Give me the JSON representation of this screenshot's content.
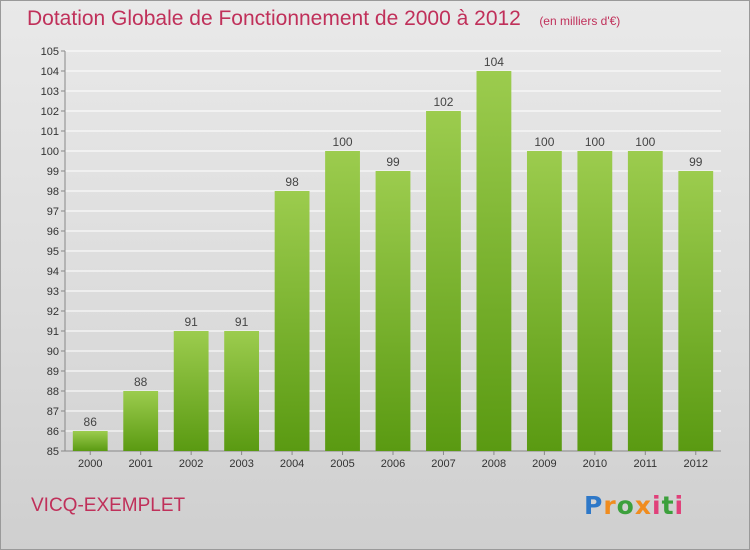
{
  "header": {
    "title": "Dotation Globale de Fonctionnement de 2000 à 2012",
    "unit": "(en milliers d'€)"
  },
  "footer": {
    "commune": "VICQ-EXEMPLET",
    "logo_text": "Proxiti"
  },
  "colors": {
    "bar_top": "#9ccc4e",
    "bar_bottom": "#5a9a12",
    "title": "#c0305a"
  },
  "chart_data": {
    "type": "bar",
    "title": "Dotation Globale de Fonctionnement de 2000 à 2012",
    "subtitle": "(en milliers d'€)",
    "xlabel": "",
    "ylabel": "",
    "categories": [
      "2000",
      "2001",
      "2002",
      "2003",
      "2004",
      "2005",
      "2006",
      "2007",
      "2008",
      "2009",
      "2010",
      "2011",
      "2012"
    ],
    "values": [
      86,
      88,
      91,
      91,
      98,
      100,
      99,
      102,
      104,
      100,
      100,
      100,
      99
    ],
    "ylim": [
      85,
      105
    ],
    "yticks": [
      85,
      86,
      87,
      88,
      89,
      90,
      91,
      92,
      93,
      94,
      95,
      96,
      97,
      98,
      99,
      100,
      101,
      102,
      103,
      104,
      105
    ],
    "grid": true,
    "legend": "none"
  }
}
